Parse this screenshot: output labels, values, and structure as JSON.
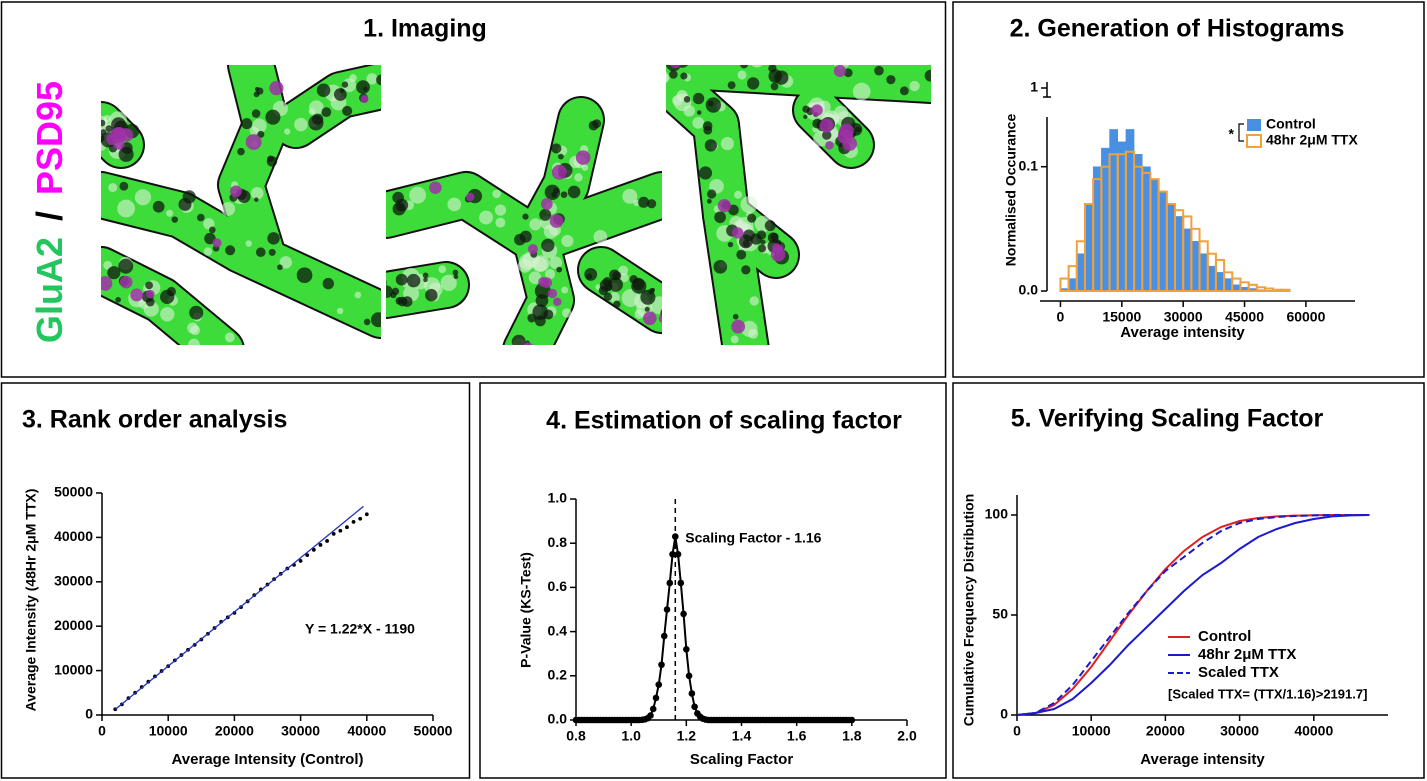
{
  "imaging": {
    "title": "1. Imaging",
    "channels": [
      {
        "text": "GluA2",
        "color": "#22c55e"
      },
      {
        "text": "PSD95",
        "color": "#ff00ff"
      }
    ],
    "separator": "/"
  },
  "chart_data": [
    {
      "type": "histogram",
      "title": "2. Generation of Histograms",
      "xlabel": "Average intensity",
      "ylabel": "Normalised Occurance",
      "bins": [
        0,
        2000,
        4000,
        6000,
        8000,
        10000,
        12000,
        14000,
        16000,
        18000,
        20000,
        22000,
        24000,
        26000,
        28000,
        30000,
        32000,
        34000,
        36000,
        38000,
        40000,
        42000,
        44000,
        46000,
        48000,
        50000,
        52000,
        54000,
        56000
      ],
      "series": [
        {
          "name": "Control",
          "color": "#4a90e2",
          "style": "filled",
          "values": [
            0.002,
            0.01,
            0.03,
            0.07,
            0.1,
            0.115,
            0.13,
            0.12,
            0.13,
            0.11,
            0.1,
            0.09,
            0.08,
            0.07,
            0.06,
            0.05,
            0.04,
            0.03,
            0.02,
            0.015,
            0.01,
            0.005,
            0.003,
            0.002,
            0.001,
            0,
            0,
            0
          ]
        },
        {
          "name": "48hr 2μM TTX",
          "color": "#f0a03c",
          "style": "outline",
          "values": [
            0.01,
            0.02,
            0.04,
            0.07,
            0.09,
            0.1,
            0.11,
            0.11,
            0.112,
            0.1,
            0.095,
            0.09,
            0.08,
            0.07,
            0.065,
            0.06,
            0.05,
            0.04,
            0.03,
            0.025,
            0.015,
            0.01,
            0.007,
            0.005,
            0.003,
            0.002,
            0.001,
            0.001
          ]
        }
      ],
      "significance": "*",
      "xlim": [
        -5000,
        72000
      ],
      "xticks": [
        0,
        15000,
        30000,
        45000,
        60000
      ],
      "ylim": [
        0,
        0.14
      ],
      "yticks": [
        {
          "value": 0,
          "label": "0.0"
        },
        0.1
      ],
      "y_break_tick": 1
    },
    {
      "type": "scatter",
      "title": "3. Rank order analysis",
      "xlabel": "Average Intensity (Control)",
      "ylabel": "Average Intensity (48Hr 2μM TTX)",
      "points": {
        "color": "#000000",
        "x": [
          2000,
          3000,
          4000,
          5000,
          6000,
          7000,
          8000,
          9000,
          10000,
          11000,
          12000,
          13000,
          14000,
          15000,
          16000,
          17000,
          18000,
          19000,
          20000,
          21000,
          22000,
          23000,
          24000,
          25000,
          26000,
          27000,
          28000,
          29000,
          30000,
          31000,
          32000,
          33000,
          34000,
          35000,
          36000,
          37000,
          38000,
          39000,
          40000
        ],
        "y": [
          1300,
          2400,
          3800,
          5000,
          6300,
          7500,
          8700,
          9900,
          11000,
          12300,
          13500,
          14700,
          15800,
          17000,
          18300,
          19600,
          21000,
          22000,
          23000,
          24300,
          25600,
          27000,
          28300,
          29400,
          30600,
          31800,
          33000,
          33800,
          34700,
          36000,
          37200,
          38300,
          39200,
          40800,
          41500,
          42300,
          43500,
          44200,
          45200
        ]
      },
      "fit_line": {
        "color": "#2030c0",
        "x": [
          2000,
          39500
        ],
        "y": [
          1250,
          47000
        ]
      },
      "annotation": "Y = 1.22*X - 1190",
      "xlim": [
        0,
        50000
      ],
      "xticks": [
        0,
        10000,
        20000,
        30000,
        40000,
        50000
      ],
      "ylim": [
        0,
        50000
      ],
      "yticks": [
        0,
        10000,
        20000,
        30000,
        40000,
        50000
      ]
    },
    {
      "type": "line",
      "title": "4. Estimation of scaling factor",
      "xlabel": "Scaling Factor",
      "ylabel": "P-Value (KS-Test)",
      "color": "#000000",
      "markers": true,
      "x": [
        0.8,
        0.81,
        0.82,
        0.83,
        0.84,
        0.85,
        0.86,
        0.87,
        0.88,
        0.89,
        0.9,
        0.91,
        0.92,
        0.93,
        0.94,
        0.95,
        0.96,
        0.97,
        0.98,
        0.99,
        1,
        1.01,
        1.02,
        1.03,
        1.04,
        1.05,
        1.06,
        1.07,
        1.08,
        1.09,
        1.1,
        1.11,
        1.12,
        1.13,
        1.14,
        1.15,
        1.16,
        1.17,
        1.18,
        1.19,
        1.2,
        1.21,
        1.22,
        1.23,
        1.24,
        1.25,
        1.26,
        1.27,
        1.28,
        1.29,
        1.3,
        1.31,
        1.32,
        1.33,
        1.34,
        1.35,
        1.36,
        1.37,
        1.38,
        1.39,
        1.4,
        1.41,
        1.42,
        1.43,
        1.44,
        1.45,
        1.46,
        1.47,
        1.48,
        1.49,
        1.5,
        1.51,
        1.52,
        1.53,
        1.54,
        1.55,
        1.56,
        1.57,
        1.58,
        1.59,
        1.6,
        1.61,
        1.62,
        1.63,
        1.64,
        1.65,
        1.66,
        1.67,
        1.68,
        1.69,
        1.7,
        1.71,
        1.72,
        1.73,
        1.74,
        1.75,
        1.76,
        1.77,
        1.78,
        1.79,
        1.8
      ],
      "values": [
        0,
        0,
        0,
        0,
        0,
        0,
        0,
        0,
        0,
        0,
        0,
        0,
        0,
        0,
        0,
        0,
        0,
        0,
        0,
        0,
        0,
        0,
        0,
        0,
        0.001,
        0.003,
        0.008,
        0.02,
        0.05,
        0.1,
        0.16,
        0.25,
        0.38,
        0.5,
        0.62,
        0.75,
        0.83,
        0.75,
        0.62,
        0.48,
        0.32,
        0.2,
        0.12,
        0.06,
        0.03,
        0.015,
        0.006,
        0.002,
        0,
        0,
        0,
        0,
        0,
        0,
        0,
        0,
        0,
        0,
        0,
        0,
        0,
        0,
        0,
        0,
        0,
        0,
        0,
        0,
        0,
        0,
        0,
        0,
        0,
        0,
        0,
        0,
        0,
        0,
        0,
        0,
        0,
        0,
        0,
        0,
        0,
        0,
        0,
        0,
        0,
        0,
        0,
        0,
        0,
        0,
        0,
        0,
        0,
        0,
        0,
        0,
        0
      ],
      "reference_x": 1.16,
      "annotation": "Scaling Factor - 1.16",
      "xlim": [
        0.8,
        2.0
      ],
      "xticks": [
        0.8,
        {
          "value": 1,
          "label": "1.0"
        },
        1.2,
        1.4,
        1.6,
        1.8,
        {
          "value": 2,
          "label": "2.0"
        }
      ],
      "ylim": [
        0,
        1
      ],
      "yticks": [
        {
          "value": 0,
          "label": "0.0"
        },
        0.2,
        0.4,
        0.6,
        0.8,
        {
          "value": 1,
          "label": "1.0"
        }
      ]
    },
    {
      "type": "line",
      "title": "5. Verifying Scaling Factor",
      "xlabel": "Average intensity",
      "ylabel": "Cumulative Frequency Distribution",
      "x": [
        0,
        2500,
        5000,
        7500,
        10000,
        12500,
        15000,
        17500,
        20000,
        22500,
        25000,
        27500,
        30000,
        32500,
        35000,
        37500,
        40000,
        42500,
        45000,
        47500
      ],
      "series": [
        {
          "name": "Control",
          "color": "#e02020",
          "dashed": false,
          "values": [
            0,
            1,
            5,
            13,
            24,
            37,
            50,
            62,
            73,
            82,
            89,
            94,
            97,
            98.5,
            99.3,
            99.7,
            99.9,
            100,
            100,
            100
          ]
        },
        {
          "name": "48hr 2μM TTX",
          "color": "#1a1acf",
          "dashed": false,
          "values": [
            0,
            1,
            3,
            8,
            16,
            25,
            35,
            44,
            53,
            62,
            70,
            76,
            83,
            89,
            93,
            96,
            98,
            99.3,
            99.8,
            100
          ]
        },
        {
          "name": "Scaled TTX",
          "color": "#1a1acf",
          "dashed": true,
          "values": [
            0,
            1,
            6,
            15,
            27,
            39,
            51,
            62,
            72,
            79,
            86,
            92,
            96,
            98,
            99,
            99.5,
            99.8,
            100,
            100,
            100
          ]
        }
      ],
      "legend": "lower right",
      "note": "[Scaled TTX= (TTX/1.16)>2191.7]",
      "xlim": [
        0,
        50000
      ],
      "xticks": [
        0,
        10000,
        20000,
        30000,
        40000
      ],
      "ylim": [
        0,
        110
      ],
      "yticks": [
        0,
        50,
        100
      ]
    }
  ]
}
